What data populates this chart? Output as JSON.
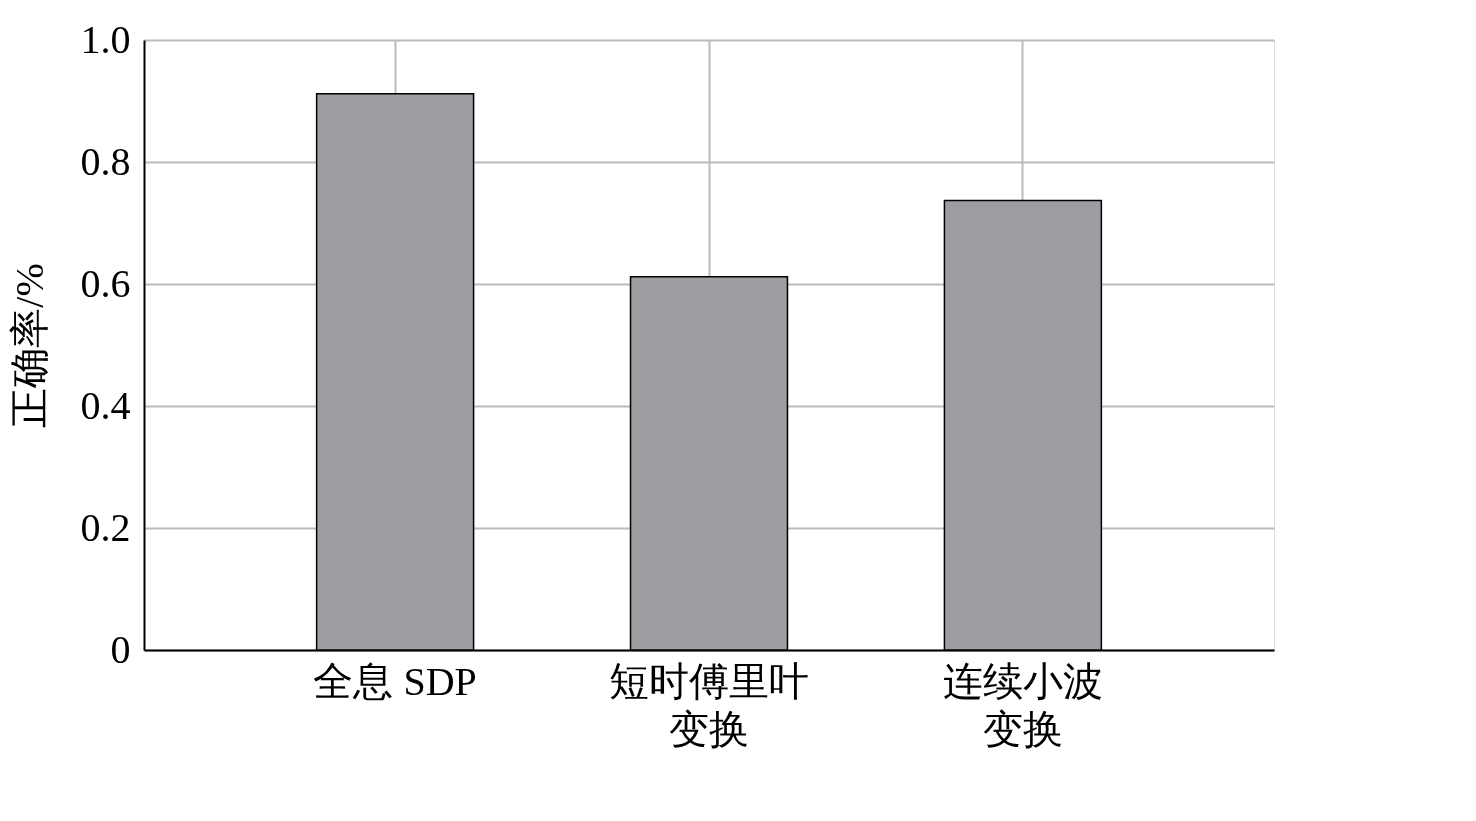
{
  "chart_data": {
    "type": "bar",
    "ylabel": "正确率/%",
    "categories": [
      "全息 SDP",
      "短时傅里叶变换",
      "连续小波变换"
    ],
    "values": [
      0.912,
      0.612,
      0.737
    ],
    "color": "#9d9ea2",
    "ylim": [
      0,
      1
    ],
    "yticks": [
      {
        "value": 0,
        "label": "0"
      },
      {
        "value": 0.2,
        "label": "0.2"
      },
      {
        "value": 0.4,
        "label": "0.4"
      },
      {
        "value": 0.6,
        "label": "0.6"
      },
      {
        "value": 0.8,
        "label": "0.8"
      },
      {
        "value": 1,
        "label": "1.0"
      }
    ],
    "grid": true
  }
}
